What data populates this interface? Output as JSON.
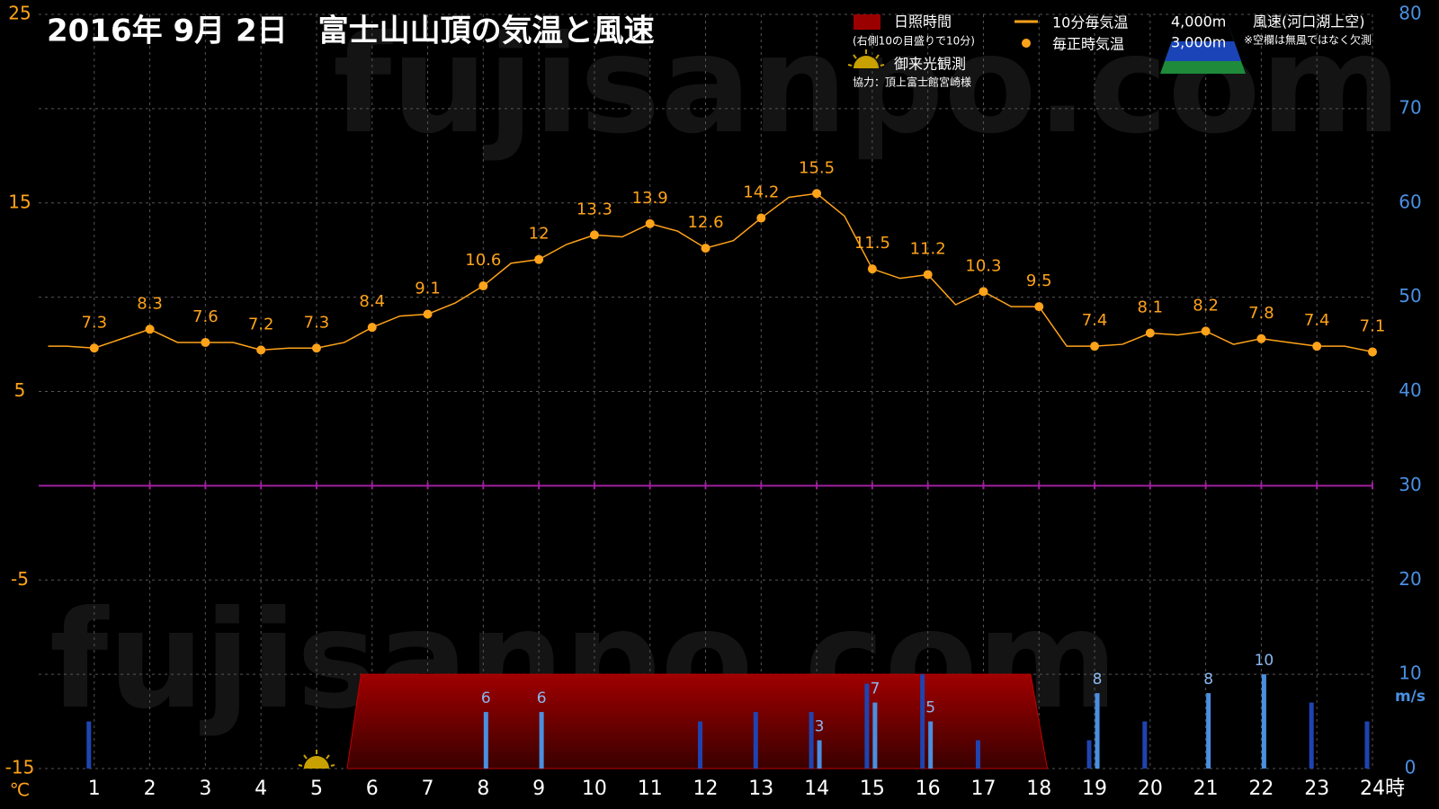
{
  "watermark": "fujisanpo.com",
  "chart_data": {
    "type": "combo",
    "title": "2016年 9月 2日　富士山山頂の気温と風速",
    "xlim": [
      0,
      24
    ],
    "xticks": [
      1,
      2,
      3,
      4,
      5,
      6,
      7,
      8,
      9,
      10,
      11,
      12,
      13,
      14,
      15,
      16,
      17,
      18,
      19,
      20,
      21,
      22,
      23,
      24
    ],
    "xlabel": "時",
    "ylim": [
      -15,
      25
    ],
    "yticks": [
      -15,
      -5,
      5,
      15,
      25
    ],
    "ylabel": "℃",
    "y2lim": [
      0,
      80
    ],
    "y2ticks": [
      0,
      10,
      20,
      30,
      40,
      50,
      60,
      70,
      80
    ],
    "y2label": "m/s",
    "grid": true,
    "reference_line": {
      "value": 0,
      "color": "#a01fa0"
    },
    "series": [
      {
        "name": "日照時間",
        "note": "(右側10の目盛りで10分)",
        "type": "area",
        "axis": "y2",
        "color": "#9a0000",
        "x": [
          5.55,
          5.8,
          17.85,
          18.15
        ],
        "values": [
          0,
          10,
          10,
          0
        ]
      },
      {
        "name": "3,000m",
        "type": "bar",
        "axis": "y2",
        "color": "#1f44b0",
        "show_values": false,
        "x": [
          1,
          2,
          3,
          4,
          5,
          6,
          7,
          8,
          9,
          10,
          11,
          12,
          13,
          14,
          15,
          16,
          17,
          18,
          19,
          20,
          21,
          22,
          23,
          24
        ],
        "values": [
          5,
          null,
          null,
          null,
          null,
          null,
          null,
          null,
          null,
          null,
          null,
          5,
          6,
          6,
          9,
          10,
          3,
          null,
          3,
          5,
          null,
          null,
          7,
          5
        ]
      },
      {
        "name": "4,000m",
        "type": "bar",
        "axis": "y2",
        "color": "#4a8fe0",
        "show_values": true,
        "x": [
          1,
          2,
          3,
          4,
          5,
          6,
          7,
          8,
          9,
          10,
          11,
          12,
          13,
          14,
          15,
          16,
          17,
          18,
          19,
          20,
          21,
          22,
          23,
          24
        ],
        "values": [
          null,
          null,
          null,
          null,
          null,
          null,
          null,
          6,
          6,
          null,
          null,
          null,
          null,
          3,
          7,
          5,
          null,
          null,
          8,
          null,
          8,
          10,
          null,
          null
        ]
      },
      {
        "name": "10分毎気温",
        "type": "line",
        "color": "#ffa31a",
        "x": [
          0.17,
          0.5,
          1,
          1.5,
          2,
          2.5,
          3,
          3.5,
          4,
          4.5,
          5,
          5.5,
          6,
          6.5,
          7,
          7.5,
          8,
          8.5,
          9,
          9.5,
          10,
          10.5,
          11,
          11.5,
          12,
          12.5,
          13,
          13.5,
          14,
          14.5,
          15,
          15.5,
          16,
          16.5,
          17,
          17.5,
          18,
          18.5,
          19,
          19.5,
          20,
          20.5,
          21,
          21.5,
          22,
          22.5,
          23,
          23.5,
          24
        ],
        "values": [
          7.4,
          7.4,
          7.3,
          7.8,
          8.3,
          7.6,
          7.6,
          7.6,
          7.2,
          7.3,
          7.3,
          7.6,
          8.4,
          9.0,
          9.1,
          9.7,
          10.6,
          11.8,
          12,
          12.8,
          13.3,
          13.2,
          13.9,
          13.5,
          12.6,
          13,
          14.2,
          15.3,
          15.5,
          14.3,
          11.5,
          11,
          11.2,
          9.6,
          10.3,
          9.5,
          9.5,
          7.4,
          7.4,
          7.5,
          8.1,
          8.0,
          8.2,
          7.5,
          7.8,
          7.6,
          7.4,
          7.4,
          7.1
        ]
      },
      {
        "name": "毎正時気温",
        "type": "scatter",
        "color": "#ffa31a",
        "show_values": true,
        "x": [
          1,
          2,
          3,
          4,
          5,
          6,
          7,
          8,
          9,
          10,
          11,
          12,
          13,
          14,
          15,
          16,
          17,
          18,
          19,
          20,
          21,
          22,
          23,
          24
        ],
        "values": [
          7.3,
          8.3,
          7.6,
          7.2,
          7.3,
          8.4,
          9.1,
          10.6,
          12,
          13.3,
          13.9,
          12.6,
          14.2,
          15.5,
          11.5,
          11.2,
          10.3,
          9.5,
          7.4,
          8.1,
          8.2,
          7.8,
          7.4,
          7.1
        ]
      }
    ],
    "wind_legend": {
      "title": "風速(河口湖上空)",
      "note": "※空欄は無風ではなく欠測"
    },
    "sunrise_observation": {
      "label": "御来光観測",
      "x": 5,
      "credit": "協力：頂上富士館宮崎様"
    }
  }
}
